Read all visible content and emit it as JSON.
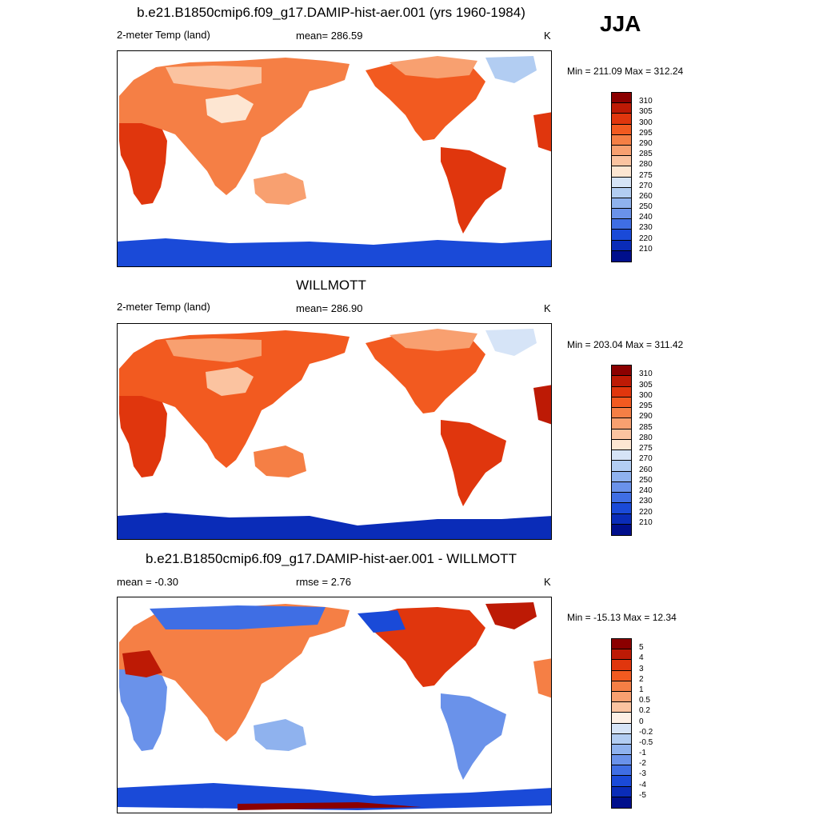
{
  "season": "JJA",
  "panels": [
    {
      "title": "b.e21.B1850cmip6.f09_g17.DAMIP-hist-aer.001 (yrs 1960-1984)",
      "left_label": "2-meter Temp (land)",
      "center_label": "mean= 286.59",
      "unit": "K",
      "minmax": "Min = 211.09 Max = 312.24",
      "palette": "absolute"
    },
    {
      "title": "WILLMOTT",
      "left_label": "2-meter Temp (land)",
      "center_label": "mean= 286.90",
      "unit": "K",
      "minmax": "Min = 203.04 Max = 311.42",
      "palette": "absolute"
    },
    {
      "title": "b.e21.B1850cmip6.f09_g17.DAMIP-hist-aer.001 - WILLMOTT",
      "left_label": "mean =  -0.30",
      "center_label": "rmse =   2.76",
      "unit": "K",
      "minmax": "Min = -15.13 Max =  12.34",
      "palette": "difference"
    }
  ],
  "colorbars": {
    "absolute": {
      "labels": [
        "310",
        "305",
        "300",
        "295",
        "290",
        "285",
        "280",
        "275",
        "270",
        "260",
        "250",
        "240",
        "230",
        "220",
        "210"
      ],
      "colors": [
        "#8b0000",
        "#bd1a05",
        "#e0360d",
        "#f25a20",
        "#f57f45",
        "#f8a070",
        "#fbc3a0",
        "#fde6d2",
        "#d6e4f7",
        "#b2cdf2",
        "#8fb2ee",
        "#6a92ea",
        "#3f6ee4",
        "#1a4ad8",
        "#0a2cb8",
        "#000f8c"
      ]
    },
    "difference": {
      "labels": [
        "5",
        "4",
        "3",
        "2",
        "1",
        "0.5",
        "0.2",
        "0",
        "-0.2",
        "-0.5",
        "-1",
        "-2",
        "-3",
        "-4",
        "-5"
      ],
      "colors": [
        "#8b0000",
        "#bd1a05",
        "#e0360d",
        "#f25a20",
        "#f57f45",
        "#f8a070",
        "#fbc3a0",
        "#fdf0e6",
        "#d6e4f7",
        "#b2cdf2",
        "#8fb2ee",
        "#6a92ea",
        "#3f6ee4",
        "#1a4ad8",
        "#0a2cb8",
        "#000f8c"
      ]
    }
  }
}
